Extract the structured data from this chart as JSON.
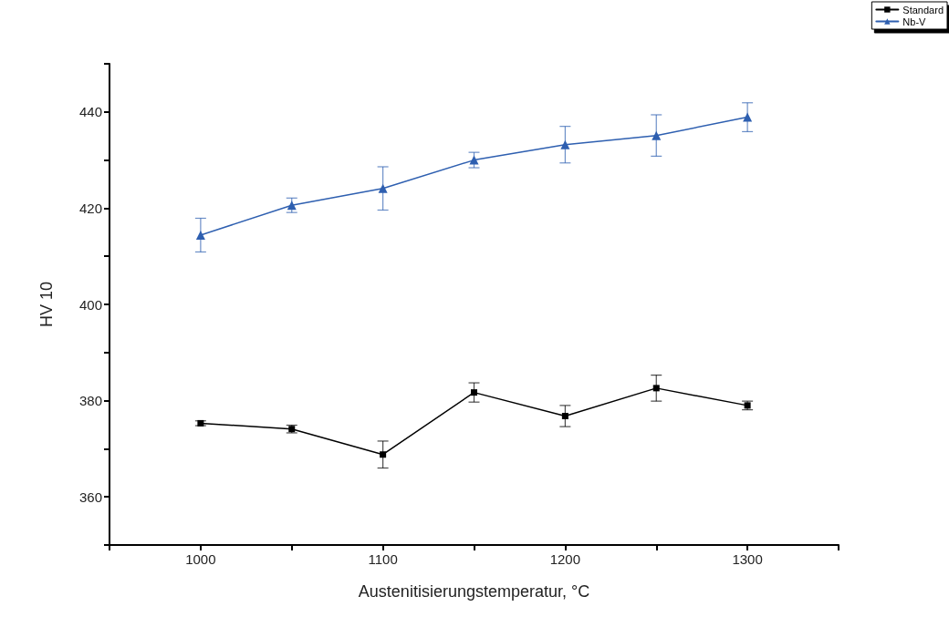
{
  "chart_data": {
    "type": "line",
    "xlabel": "Austenitisierungstemperatur, °C",
    "ylabel": "HV 10",
    "x": [
      1000,
      1050,
      1100,
      1150,
      1200,
      1250,
      1300
    ],
    "series": [
      {
        "name": "Standard",
        "color": "#000000",
        "marker": "square",
        "values": [
          375.3,
          374.1,
          368.8,
          381.7,
          376.8,
          382.6,
          379
        ],
        "errors": [
          0.5,
          0.8,
          2.8,
          2,
          2.2,
          2.7,
          0.9
        ]
      },
      {
        "name": "Nb-V",
        "color": "#2e5fb0",
        "marker": "triangle",
        "values": [
          414.4,
          420.6,
          424.1,
          430,
          433.2,
          435.1,
          438.9
        ],
        "errors": [
          3.5,
          1.5,
          4.5,
          1.6,
          3.8,
          4.3,
          3
        ]
      }
    ],
    "xlim": [
      950,
      1350
    ],
    "xticks": [
      {
        "value": 950,
        "label": null
      },
      1000,
      {
        "value": 1050,
        "label": null
      },
      1100,
      {
        "value": 1150,
        "label": null
      },
      1200,
      {
        "value": 1250,
        "label": null
      },
      1300,
      {
        "value": 1350,
        "label": null
      }
    ],
    "ylim": [
      350,
      450
    ],
    "yticks": [
      {
        "value": 350,
        "label": null
      },
      360,
      {
        "value": 370,
        "label": null
      },
      380,
      {
        "value": 390,
        "label": null
      },
      400,
      {
        "value": 410,
        "label": null
      },
      420,
      {
        "value": 430,
        "label": null
      },
      440,
      {
        "value": 450,
        "label": null
      }
    ],
    "grid": false,
    "legend": "top right",
    "line_style": "solid"
  }
}
